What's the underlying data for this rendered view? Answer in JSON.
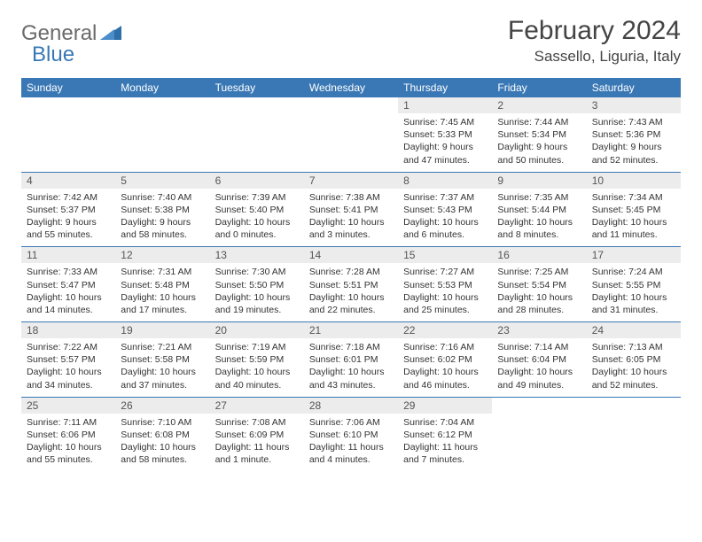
{
  "brand": {
    "part1": "General",
    "part2": "Blue"
  },
  "title": "February 2024",
  "location": "Sassello, Liguria, Italy",
  "colors": {
    "header_bg": "#3a78b5",
    "header_text": "#ffffff",
    "daynum_bg": "#ececec",
    "border": "#3a78b5",
    "logo_gray": "#6b6b6b",
    "logo_blue": "#3a78b5"
  },
  "weekdays": [
    "Sunday",
    "Monday",
    "Tuesday",
    "Wednesday",
    "Thursday",
    "Friday",
    "Saturday"
  ],
  "weeks": [
    [
      null,
      null,
      null,
      null,
      {
        "n": "1",
        "sr": "7:45 AM",
        "ss": "5:33 PM",
        "dl": "9 hours and 47 minutes."
      },
      {
        "n": "2",
        "sr": "7:44 AM",
        "ss": "5:34 PM",
        "dl": "9 hours and 50 minutes."
      },
      {
        "n": "3",
        "sr": "7:43 AM",
        "ss": "5:36 PM",
        "dl": "9 hours and 52 minutes."
      }
    ],
    [
      {
        "n": "4",
        "sr": "7:42 AM",
        "ss": "5:37 PM",
        "dl": "9 hours and 55 minutes."
      },
      {
        "n": "5",
        "sr": "7:40 AM",
        "ss": "5:38 PM",
        "dl": "9 hours and 58 minutes."
      },
      {
        "n": "6",
        "sr": "7:39 AM",
        "ss": "5:40 PM",
        "dl": "10 hours and 0 minutes."
      },
      {
        "n": "7",
        "sr": "7:38 AM",
        "ss": "5:41 PM",
        "dl": "10 hours and 3 minutes."
      },
      {
        "n": "8",
        "sr": "7:37 AM",
        "ss": "5:43 PM",
        "dl": "10 hours and 6 minutes."
      },
      {
        "n": "9",
        "sr": "7:35 AM",
        "ss": "5:44 PM",
        "dl": "10 hours and 8 minutes."
      },
      {
        "n": "10",
        "sr": "7:34 AM",
        "ss": "5:45 PM",
        "dl": "10 hours and 11 minutes."
      }
    ],
    [
      {
        "n": "11",
        "sr": "7:33 AM",
        "ss": "5:47 PM",
        "dl": "10 hours and 14 minutes."
      },
      {
        "n": "12",
        "sr": "7:31 AM",
        "ss": "5:48 PM",
        "dl": "10 hours and 17 minutes."
      },
      {
        "n": "13",
        "sr": "7:30 AM",
        "ss": "5:50 PM",
        "dl": "10 hours and 19 minutes."
      },
      {
        "n": "14",
        "sr": "7:28 AM",
        "ss": "5:51 PM",
        "dl": "10 hours and 22 minutes."
      },
      {
        "n": "15",
        "sr": "7:27 AM",
        "ss": "5:53 PM",
        "dl": "10 hours and 25 minutes."
      },
      {
        "n": "16",
        "sr": "7:25 AM",
        "ss": "5:54 PM",
        "dl": "10 hours and 28 minutes."
      },
      {
        "n": "17",
        "sr": "7:24 AM",
        "ss": "5:55 PM",
        "dl": "10 hours and 31 minutes."
      }
    ],
    [
      {
        "n": "18",
        "sr": "7:22 AM",
        "ss": "5:57 PM",
        "dl": "10 hours and 34 minutes."
      },
      {
        "n": "19",
        "sr": "7:21 AM",
        "ss": "5:58 PM",
        "dl": "10 hours and 37 minutes."
      },
      {
        "n": "20",
        "sr": "7:19 AM",
        "ss": "5:59 PM",
        "dl": "10 hours and 40 minutes."
      },
      {
        "n": "21",
        "sr": "7:18 AM",
        "ss": "6:01 PM",
        "dl": "10 hours and 43 minutes."
      },
      {
        "n": "22",
        "sr": "7:16 AM",
        "ss": "6:02 PM",
        "dl": "10 hours and 46 minutes."
      },
      {
        "n": "23",
        "sr": "7:14 AM",
        "ss": "6:04 PM",
        "dl": "10 hours and 49 minutes."
      },
      {
        "n": "24",
        "sr": "7:13 AM",
        "ss": "6:05 PM",
        "dl": "10 hours and 52 minutes."
      }
    ],
    [
      {
        "n": "25",
        "sr": "7:11 AM",
        "ss": "6:06 PM",
        "dl": "10 hours and 55 minutes."
      },
      {
        "n": "26",
        "sr": "7:10 AM",
        "ss": "6:08 PM",
        "dl": "10 hours and 58 minutes."
      },
      {
        "n": "27",
        "sr": "7:08 AM",
        "ss": "6:09 PM",
        "dl": "11 hours and 1 minute."
      },
      {
        "n": "28",
        "sr": "7:06 AM",
        "ss": "6:10 PM",
        "dl": "11 hours and 4 minutes."
      },
      {
        "n": "29",
        "sr": "7:04 AM",
        "ss": "6:12 PM",
        "dl": "11 hours and 7 minutes."
      },
      null,
      null
    ]
  ],
  "labels": {
    "sunrise": "Sunrise:",
    "sunset": "Sunset:",
    "daylight": "Daylight:"
  }
}
